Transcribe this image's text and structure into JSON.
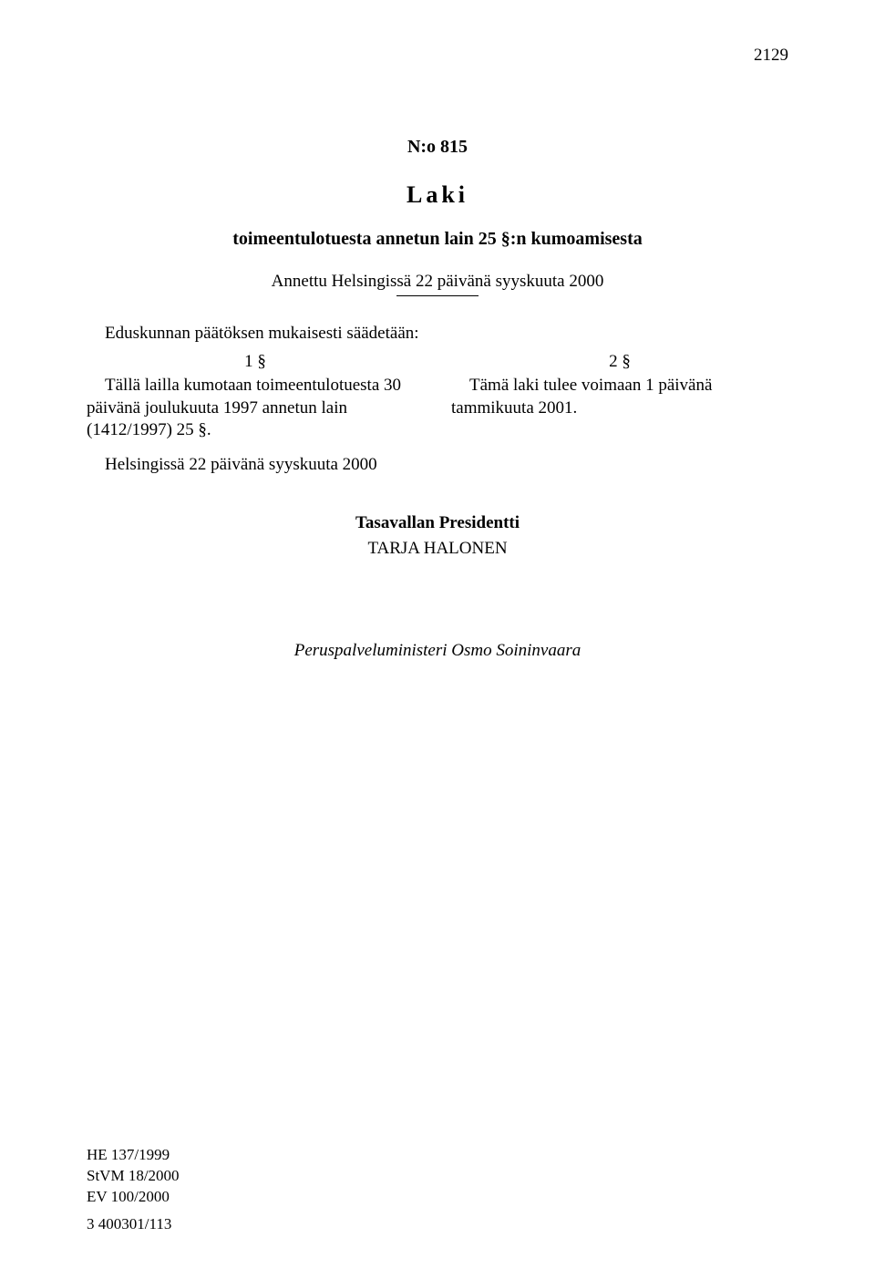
{
  "page_number": "2129",
  "document_number": "N:o 815",
  "document_type": "Laki",
  "title": "toimeentulotuesta annetun lain 25 §:n kumoamisesta",
  "given_at": "Annettu Helsingissä 22 päivänä syyskuuta 2000",
  "enacting_clause": "Eduskunnan päätöksen mukaisesti säädetään:",
  "sections": {
    "s1": {
      "num": "1 §",
      "text": "Tällä lailla kumotaan toimeentulotuesta 30 päivänä joulukuuta 1997 annetun lain (1412/1997) 25 §."
    },
    "s2": {
      "num": "2 §",
      "text": "Tämä laki tulee voimaan 1 päivänä tammikuuta 2001."
    }
  },
  "closing": "Helsingissä 22 päivänä syyskuuta 2000",
  "president_title": "Tasavallan Presidentti",
  "president_name": "TARJA HALONEN",
  "minister": "Peruspalveluministeri Osmo Soininvaara",
  "footer_refs": {
    "line1": "HE 137/1999",
    "line2": "StVM 18/2000",
    "line3": "EV 100/2000"
  },
  "footer_seq": "3   400301/113",
  "colors": {
    "background": "#ffffff",
    "text": "#000000"
  },
  "typography": {
    "body_fontsize_pt": 14,
    "heading_fontsize_pt": 20,
    "font_family": "Times New Roman"
  }
}
